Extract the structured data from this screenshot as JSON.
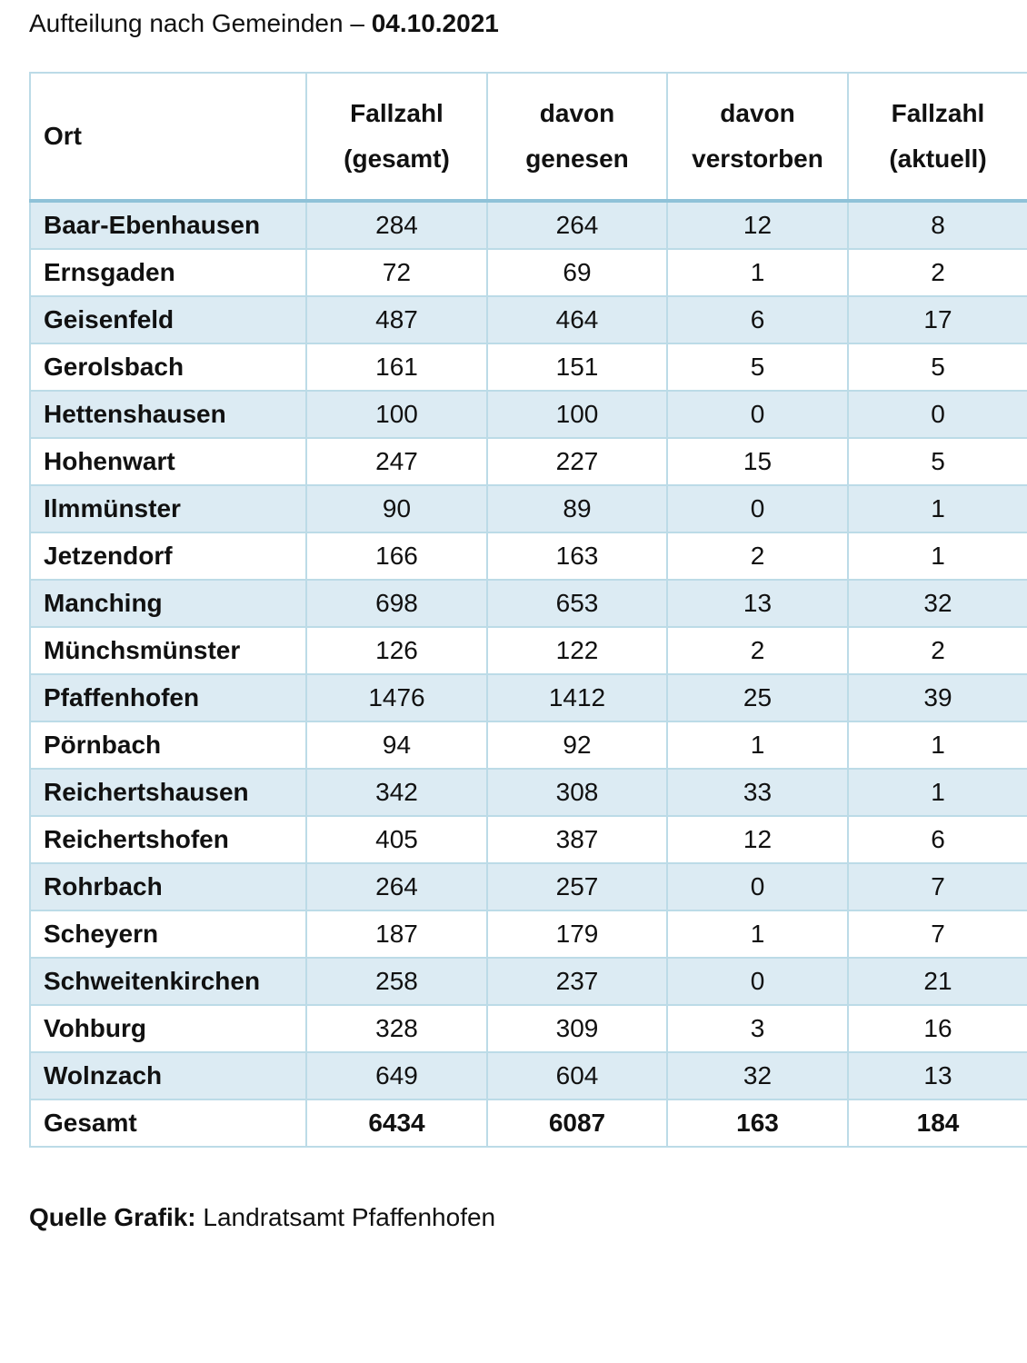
{
  "title": {
    "text": "Aufteilung nach Gemeinden – ",
    "date": "04.10.2021"
  },
  "table": {
    "headers": {
      "ort": "Ort",
      "c1_line1": "Fallzahl",
      "c1_line2": "(gesamt)",
      "c2_line1": "davon",
      "c2_line2": "genesen",
      "c3_line1": "davon",
      "c3_line2": "verstorben",
      "c4_line1": "Fallzahl",
      "c4_line2": "(aktuell)"
    },
    "rows": [
      {
        "ort": "Baar-Ebenhausen",
        "gesamt": "284",
        "genesen": "264",
        "verstorben": "12",
        "aktuell": "8"
      },
      {
        "ort": "Ernsgaden",
        "gesamt": "72",
        "genesen": "69",
        "verstorben": "1",
        "aktuell": "2"
      },
      {
        "ort": "Geisenfeld",
        "gesamt": "487",
        "genesen": "464",
        "verstorben": "6",
        "aktuell": "17"
      },
      {
        "ort": "Gerolsbach",
        "gesamt": "161",
        "genesen": "151",
        "verstorben": "5",
        "aktuell": "5"
      },
      {
        "ort": "Hettenshausen",
        "gesamt": "100",
        "genesen": "100",
        "verstorben": "0",
        "aktuell": "0"
      },
      {
        "ort": "Hohenwart",
        "gesamt": "247",
        "genesen": "227",
        "verstorben": "15",
        "aktuell": "5"
      },
      {
        "ort": "Ilmmünster",
        "gesamt": "90",
        "genesen": "89",
        "verstorben": "0",
        "aktuell": "1"
      },
      {
        "ort": "Jetzendorf",
        "gesamt": "166",
        "genesen": "163",
        "verstorben": "2",
        "aktuell": "1"
      },
      {
        "ort": "Manching",
        "gesamt": "698",
        "genesen": "653",
        "verstorben": "13",
        "aktuell": "32"
      },
      {
        "ort": "Münchsmünster",
        "gesamt": "126",
        "genesen": "122",
        "verstorben": "2",
        "aktuell": "2"
      },
      {
        "ort": "Pfaffenhofen",
        "gesamt": "1476",
        "genesen": "1412",
        "verstorben": "25",
        "aktuell": "39"
      },
      {
        "ort": "Pörnbach",
        "gesamt": "94",
        "genesen": "92",
        "verstorben": "1",
        "aktuell": "1"
      },
      {
        "ort": "Reichertshausen",
        "gesamt": "342",
        "genesen": "308",
        "verstorben": "33",
        "aktuell": "1"
      },
      {
        "ort": "Reichertshofen",
        "gesamt": "405",
        "genesen": "387",
        "verstorben": "12",
        "aktuell": "6"
      },
      {
        "ort": "Rohrbach",
        "gesamt": "264",
        "genesen": "257",
        "verstorben": "0",
        "aktuell": "7"
      },
      {
        "ort": "Scheyern",
        "gesamt": "187",
        "genesen": "179",
        "verstorben": "1",
        "aktuell": "7"
      },
      {
        "ort": "Schweitenkirchen",
        "gesamt": "258",
        "genesen": "237",
        "verstorben": "0",
        "aktuell": "21"
      },
      {
        "ort": "Vohburg",
        "gesamt": "328",
        "genesen": "309",
        "verstorben": "3",
        "aktuell": "16"
      },
      {
        "ort": "Wolnzach",
        "gesamt": "649",
        "genesen": "604",
        "verstorben": "32",
        "aktuell": "13"
      }
    ],
    "total": {
      "ort": "Gesamt",
      "gesamt": "6434",
      "genesen": "6087",
      "verstorben": "163",
      "aktuell": "184"
    }
  },
  "source": {
    "label": "Quelle Grafik:",
    "text": " Landratsamt Pfaffenhofen"
  },
  "colors": {
    "band": "#dcebf3",
    "border": "#bcdbe7",
    "header_rule": "#8fc2d8"
  }
}
